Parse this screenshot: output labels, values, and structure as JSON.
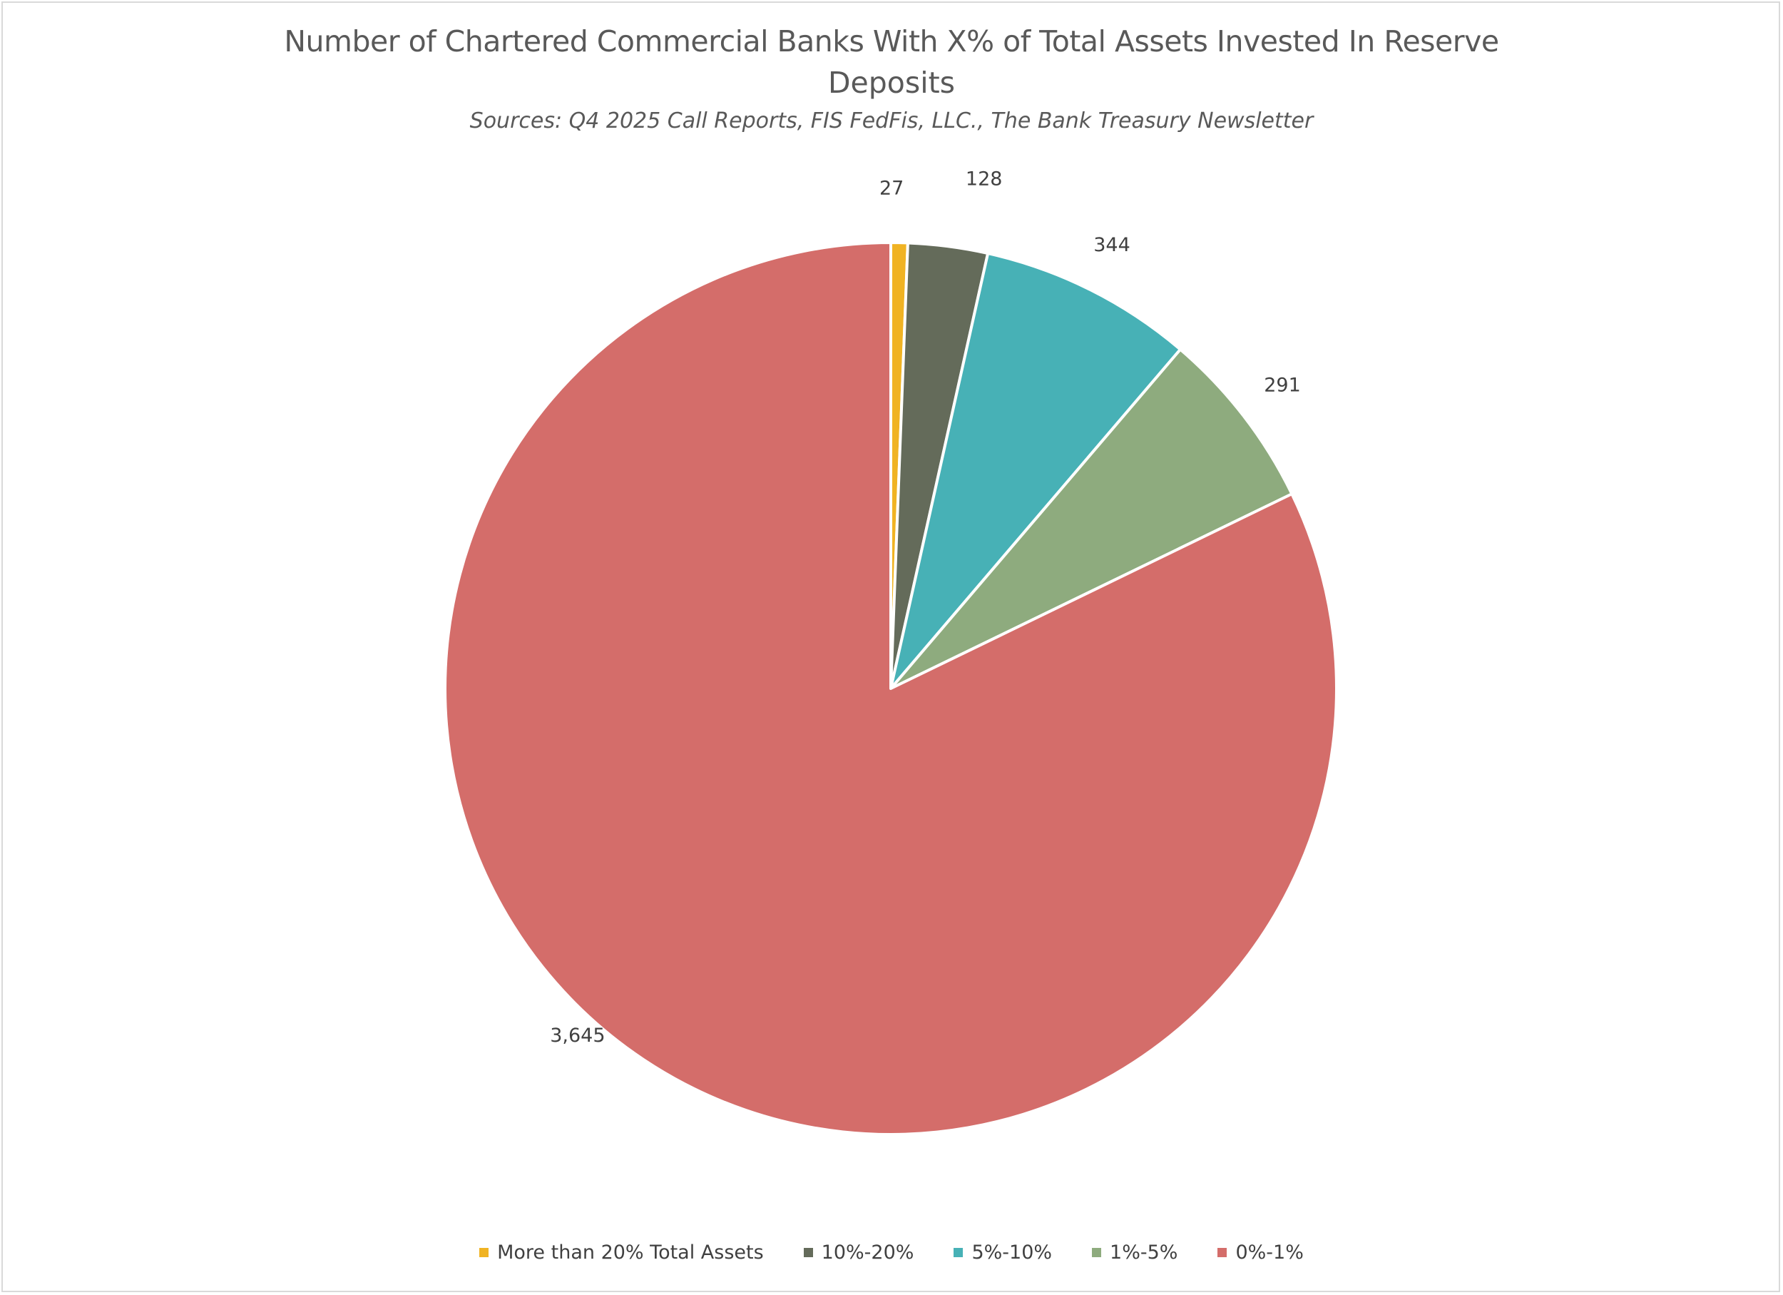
{
  "chart_data": {
    "type": "pie",
    "title_line1": "Number of Chartered Commercial Banks With X% of Total Assets Invested In Reserve",
    "title_line2": "Deposits",
    "subtitle": "Sources: Q4 2025 Call Reports, FIS FedFis, LLC., The Bank Treasury Newsletter",
    "slices": [
      {
        "category": "More than 20% Total Assets",
        "value": 27,
        "label": "27",
        "color": "#f0b323"
      },
      {
        "category": "10%-20%",
        "value": 128,
        "label": "128",
        "color": "#646b5a"
      },
      {
        "category": "5%-10%",
        "value": 344,
        "label": "344",
        "color": "#47b1b6"
      },
      {
        "category": "1%-5%",
        "value": 291,
        "label": "291",
        "color": "#8eab7e"
      },
      {
        "category": "0%-1%",
        "value": 3645,
        "label": "3,645",
        "color": "#d46d6a"
      }
    ],
    "start_angle": "12 o'clock",
    "direction": "clockwise",
    "legend_position": "bottom"
  }
}
